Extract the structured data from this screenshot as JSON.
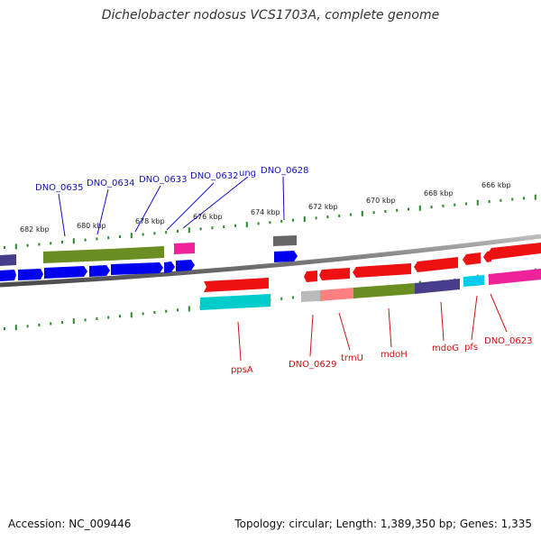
{
  "title": "Dichelobacter nodosus VCS1703A, complete genome",
  "accession": "Accession: NC_009446",
  "topology": "Topology: circular; Length: 1,389,350 bp; Genes: 1,335",
  "colors": {
    "backbone": "#808080",
    "tick": "#228b22",
    "top_label": "#1111bb",
    "bottom_label": "#cc1111",
    "cds_forward": "#0000ee",
    "cds_reverse": "#ee1111",
    "olive": "#6b8e23",
    "slate": "#483d8b",
    "pink": "#ee2299",
    "cyan": "#00cccc",
    "gray": "#666666",
    "light_gray": "#bbbbbb",
    "salmon": "#ff8080"
  },
  "scale_labels": [
    "682 kbp",
    "680 kbp",
    "678 kbp",
    "676 kbp",
    "674 kbp",
    "672 kbp",
    "670 kbp",
    "668 kbp",
    "666 kbp"
  ],
  "top_gene_labels": [
    "DNO_0635",
    "DNO_0634",
    "DNO_0633",
    "DNO_0632",
    "ung",
    "DNO_0628"
  ],
  "bottom_gene_labels": [
    "ppsA",
    "DNO_0629",
    "trmU",
    "mdoH",
    "mdoG",
    "pfs",
    "DNO_0623"
  ]
}
